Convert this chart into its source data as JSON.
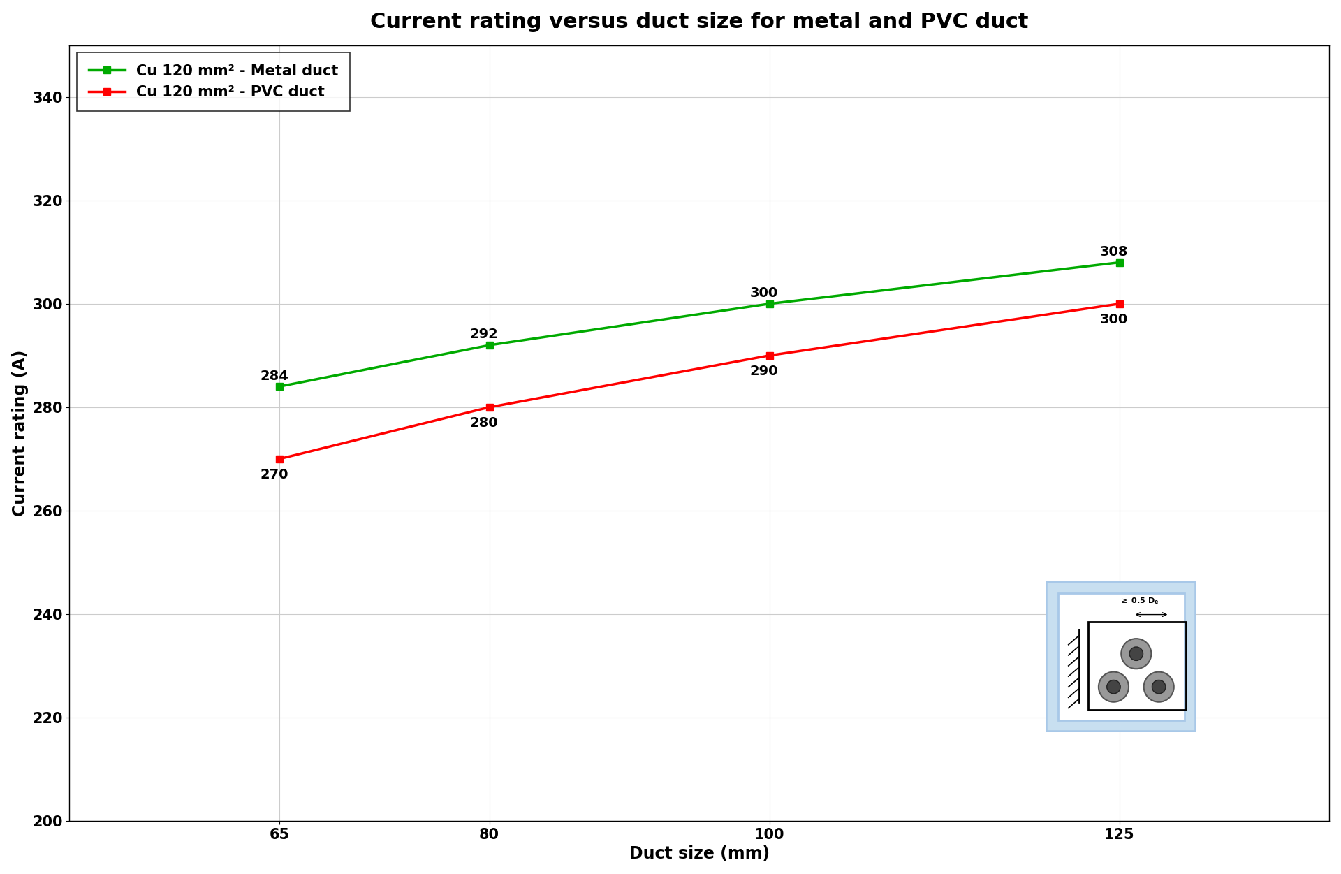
{
  "title": "Current rating versus duct size for metal and PVC duct",
  "xlabel": "Duct size (mm)",
  "ylabel": "Current rating (A)",
  "x_values": [
    65,
    80,
    100,
    125
  ],
  "metal_values": [
    284,
    292,
    300,
    308
  ],
  "pvc_values": [
    270,
    280,
    290,
    300
  ],
  "metal_color": "#00aa00",
  "pvc_color": "#ff0000",
  "metal_label": "Cu 120 mm² - Metal duct",
  "pvc_label": "Cu 120 mm² - PVC duct",
  "ylim": [
    200,
    350
  ],
  "yticks": [
    200,
    220,
    240,
    260,
    280,
    300,
    320,
    340
  ],
  "xticks": [
    65,
    80,
    100,
    125
  ],
  "xlim": [
    50,
    140
  ],
  "background_color": "#ffffff",
  "grid_color": "#cccccc",
  "title_fontsize": 22,
  "axis_label_fontsize": 17,
  "tick_fontsize": 15,
  "legend_fontsize": 15,
  "annotation_fontsize": 14,
  "line_width": 2.5,
  "marker": "s",
  "marker_size": 7,
  "inset_blue_outer": "#a8c8e8",
  "inset_blue_inner": "#c8dff0",
  "inset_white": "#ffffff",
  "cable_gray": "#999999",
  "cable_edge": "#555555"
}
